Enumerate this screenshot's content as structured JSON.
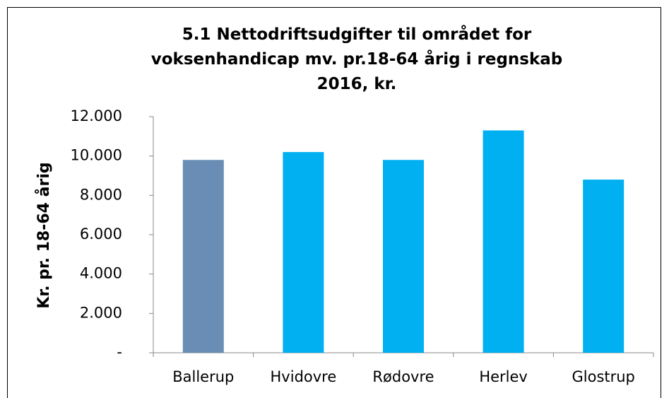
{
  "chart_data": {
    "type": "bar",
    "title": "5.1 Nettodriftsudgifter til området for voksenhandicap mv. pr.18-64 årig i regnskab 2016, kr.",
    "y_label": "Kr. pr. 18-64 årig",
    "categories": [
      "Ballerup",
      "Hvidovre",
      "Rødovre",
      "Herlev",
      "Glostrup"
    ],
    "values": [
      9800,
      10200,
      9800,
      11300,
      8800
    ],
    "colors": [
      "#6a8db5",
      "#00b0f0",
      "#00b0f0",
      "#00b0f0",
      "#00b0f0"
    ],
    "ylim": [
      0,
      12000
    ],
    "yticks": [
      {
        "value": 0,
        "label": "-"
      },
      {
        "value": 2000,
        "label": "2.000"
      },
      {
        "value": 4000,
        "label": "4.000"
      },
      {
        "value": 6000,
        "label": "6.000"
      },
      {
        "value": 8000,
        "label": "8.000"
      },
      {
        "value": 10000,
        "label": "10.000"
      },
      {
        "value": 12000,
        "label": "12.000"
      }
    ],
    "grid": false
  }
}
